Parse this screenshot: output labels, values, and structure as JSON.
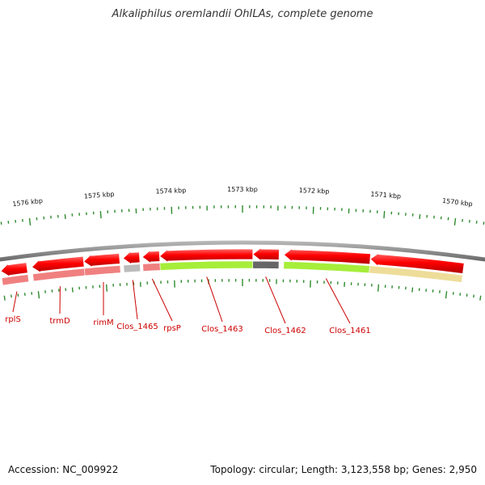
{
  "title": "Alkaliphilus oremlandii OhILAs, complete genome",
  "footer": {
    "accession": "Accession: NC_009922",
    "summary": "Topology: circular; Length: 3,123,558 bp; Genes: 2,950"
  },
  "colors": {
    "forward_arrow": "#ff0000",
    "tick": "#2e8b2e",
    "label": "#cc0000",
    "backbone": "#8a8a8a"
  },
  "scale_labels": [
    {
      "text": "1576 kbp",
      "pos_kbp": 1576
    },
    {
      "text": "1575 kbp",
      "pos_kbp": 1575
    },
    {
      "text": "1574 kbp",
      "pos_kbp": 1574
    },
    {
      "text": "1573 kbp",
      "pos_kbp": 1573
    },
    {
      "text": "1572 kbp",
      "pos_kbp": 1572
    },
    {
      "text": "1571 kbp",
      "pos_kbp": 1571
    },
    {
      "text": "1570 kbp",
      "pos_kbp": 1570
    }
  ],
  "genes": [
    {
      "name": "rplS",
      "start_kbp": 1576.5,
      "end_kbp": 1576.12,
      "cog_color": "#f08080"
    },
    {
      "name": "trmD",
      "start_kbp": 1576.05,
      "end_kbp": 1575.3,
      "cog_color": "#f08080"
    },
    {
      "name": "rimM",
      "start_kbp": 1575.3,
      "end_kbp": 1574.78,
      "cog_color": "#f08080"
    },
    {
      "name": "Clos_1465",
      "start_kbp": 1574.73,
      "end_kbp": 1574.49,
      "cog_color": "#bbbbbb"
    },
    {
      "name": "rpsP",
      "start_kbp": 1574.45,
      "end_kbp": 1574.2,
      "cog_color": "#f08080"
    },
    {
      "name": "Clos_1463",
      "start_kbp": 1574.2,
      "end_kbp": 1572.85,
      "cog_color": "#a6ee3a"
    },
    {
      "name": "Clos_1462",
      "start_kbp": 1572.85,
      "end_kbp": 1572.47,
      "cog_color": "#666666"
    },
    {
      "name": "Clos_1461",
      "start_kbp": 1572.4,
      "end_kbp": 1571.15,
      "cog_color": "#a6ee3a"
    },
    {
      "name": "",
      "start_kbp": 1571.15,
      "end_kbp": 1569.8,
      "cog_color": "#eedd99"
    }
  ]
}
